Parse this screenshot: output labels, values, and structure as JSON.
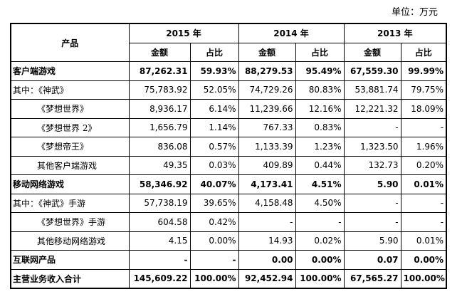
{
  "unit_label": "单位：万元",
  "header": {
    "product": "产品",
    "years": [
      "2015 年",
      "2014 年",
      "2013 年"
    ],
    "amount": "金额",
    "ratio": "占比"
  },
  "rows": [
    {
      "name": "客户端游戏",
      "bold": true,
      "indent": 0,
      "values": [
        "87,262.31",
        "59.93%",
        "88,279.53",
        "95.49%",
        "67,559.30",
        "99.99%"
      ]
    },
    {
      "name": "其中：《神武》",
      "bold": false,
      "indent": 0,
      "values": [
        "75,783.92",
        "52.05%",
        "74,729.26",
        "80.83%",
        "53,881.74",
        "79.75%"
      ]
    },
    {
      "name": "《梦想世界》",
      "bold": false,
      "indent": 1,
      "values": [
        "8,936.17",
        "6.14%",
        "11,239.66",
        "12.16%",
        "12,221.32",
        "18.09%"
      ]
    },
    {
      "name": "《梦想世界 2》",
      "bold": false,
      "indent": 1,
      "values": [
        "1,656.79",
        "1.14%",
        "767.33",
        "0.83%",
        "-",
        "-"
      ]
    },
    {
      "name": "《梦想帝王》",
      "bold": false,
      "indent": 1,
      "values": [
        "836.08",
        "0.57%",
        "1,133.39",
        "1.23%",
        "1,323.50",
        "1.96%"
      ]
    },
    {
      "name": "其他客户端游戏",
      "bold": false,
      "indent": 1,
      "values": [
        "49.35",
        "0.03%",
        "409.89",
        "0.44%",
        "132.73",
        "0.20%"
      ]
    },
    {
      "name": "移动网络游戏",
      "bold": true,
      "indent": 0,
      "values": [
        "58,346.92",
        "40.07%",
        "4,173.41",
        "4.51%",
        "5.90",
        "0.01%"
      ]
    },
    {
      "name": "其中：《神武》手游",
      "bold": false,
      "indent": 0,
      "values": [
        "57,738.19",
        "39.65%",
        "4,158.48",
        "4.50%",
        "-",
        "-"
      ]
    },
    {
      "name": "《梦想世界》手游",
      "bold": false,
      "indent": 1,
      "values": [
        "604.58",
        "0.42%",
        "-",
        "-",
        "-",
        "-"
      ]
    },
    {
      "name": "其他移动网络游戏",
      "bold": false,
      "indent": 1,
      "values": [
        "4.15",
        "0.00%",
        "14.93",
        "0.02%",
        "5.90",
        "0.01%"
      ]
    },
    {
      "name": "互联网产品",
      "bold": true,
      "indent": 0,
      "values": [
        "-",
        "-",
        "0.00",
        "0.00%",
        "0.07",
        "0.00%"
      ]
    },
    {
      "name": "主营业务收入合计",
      "bold": true,
      "indent": 0,
      "values": [
        "145,609.22",
        "100.00%",
        "92,452.94",
        "100.00%",
        "67,565.27",
        "100.00%"
      ]
    }
  ]
}
